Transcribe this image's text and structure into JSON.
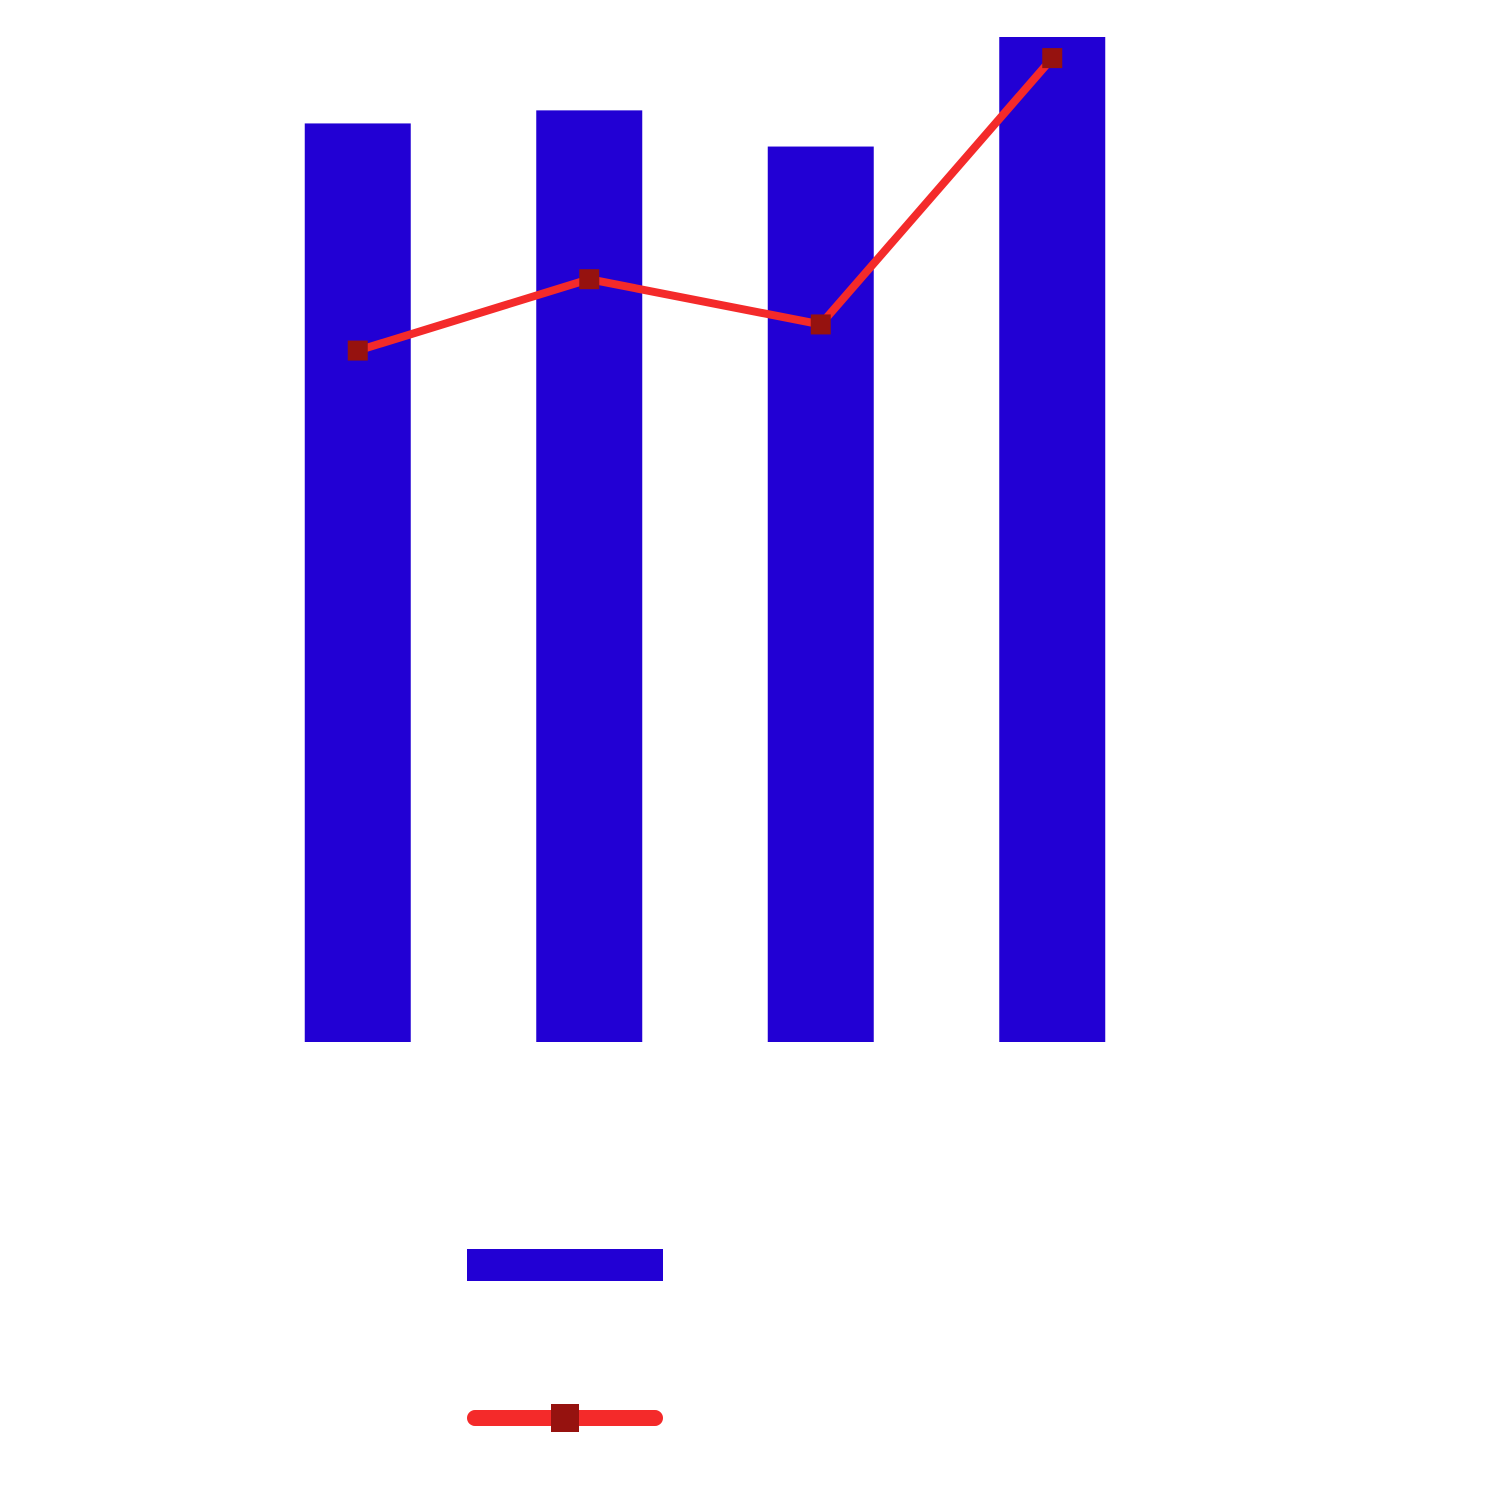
{
  "chart_data": {
    "type": "bar",
    "categories": [
      "",
      "",
      "",
      ""
    ],
    "title": "",
    "xlabel": "",
    "ylabel": "",
    "ylim": [
      0,
      1.0
    ],
    "grid": false,
    "legend": {
      "placement": "bottom-center",
      "orientation": "vertical"
    },
    "series": [
      {
        "type": "bar",
        "values": [
          0.914,
          0.927,
          0.891,
          1.0
        ],
        "color": "#2200d4"
      },
      {
        "type": "line",
        "values": [
          0.688,
          0.759,
          0.714,
          0.979
        ],
        "color": "#f42a2a",
        "marker": "square",
        "marker_color": "#96120f"
      }
    ]
  }
}
